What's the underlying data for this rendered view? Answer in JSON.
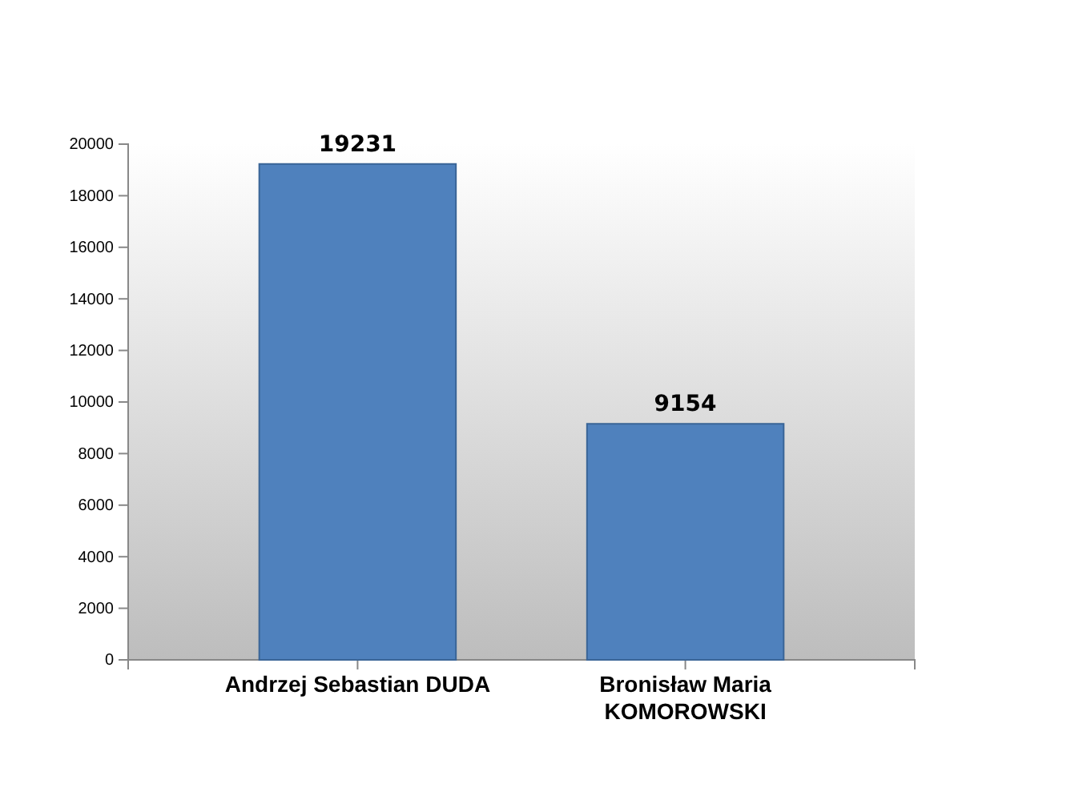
{
  "chart_data": {
    "type": "bar",
    "categories": [
      "Andrzej Sebastian DUDA",
      "Bronisław Maria KOMOROWSKI"
    ],
    "values": [
      19231,
      9154
    ],
    "color": "#4f81bd",
    "data_labels": true,
    "ylim": [
      0,
      20000
    ],
    "yticks": [
      0,
      2000,
      4000,
      6000,
      8000,
      10000,
      12000,
      14000,
      16000,
      18000,
      20000
    ],
    "grid": false
  }
}
